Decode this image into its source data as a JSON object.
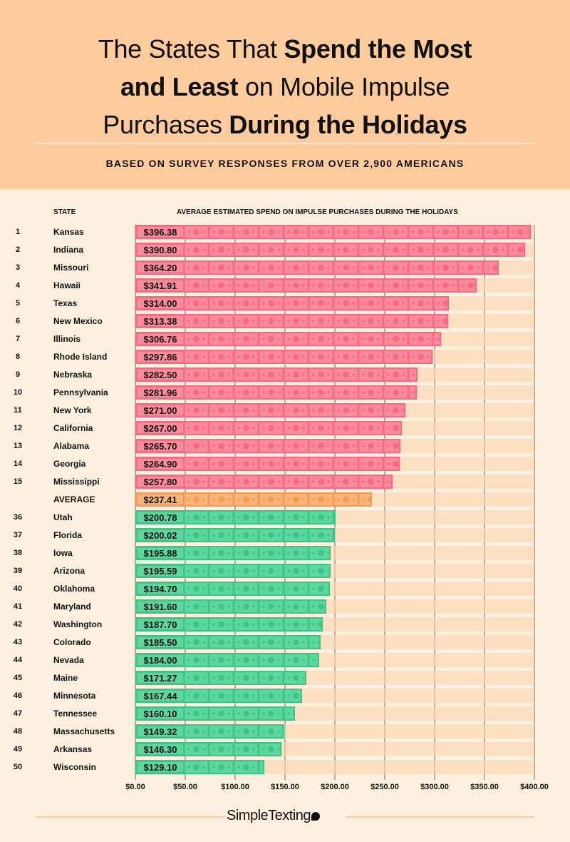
{
  "header": {
    "title_parts": [
      [
        "The States That ",
        false
      ],
      [
        "Spend the Most",
        true
      ],
      [
        "and Least",
        true
      ],
      [
        " on Mobile Impulse",
        false
      ],
      [
        "Purchases ",
        false
      ],
      [
        "During the Holidays",
        true
      ]
    ],
    "subtitle": "BASED ON SURVEY RESPONSES FROM OVER 2,900 AMERICANS"
  },
  "colors": {
    "top": "#fb8a9c",
    "average": "#f9b477",
    "bottom": "#5ed6a0",
    "track": "#fde0c4",
    "header_bg": "#fdcb9c",
    "page_bg": "#fdf0e1"
  },
  "chart_data": {
    "type": "bar",
    "orientation": "horizontal",
    "row_header": "STATE",
    "title": "AVERAGE ESTIMATED SPEND ON IMPULSE PURCHASES DURING THE HOLIDAYS",
    "xlim": [
      0,
      400
    ],
    "grid": true,
    "ticks": [
      "$0.00",
      "$50.00",
      "$100.00",
      "$150.00",
      "$200.00",
      "$250.00",
      "$300.00",
      "$350.00",
      "$400.00"
    ],
    "rows": [
      {
        "rank": "1",
        "state": "Kansas",
        "value": 396.38,
        "label": "$396.38",
        "group": "top"
      },
      {
        "rank": "2",
        "state": "Indiana",
        "value": 390.8,
        "label": "$390.80",
        "group": "top"
      },
      {
        "rank": "3",
        "state": "Missouri",
        "value": 364.2,
        "label": "$364.20",
        "group": "top"
      },
      {
        "rank": "4",
        "state": "Hawaii",
        "value": 341.91,
        "label": "$341.91",
        "group": "top"
      },
      {
        "rank": "5",
        "state": "Texas",
        "value": 314.0,
        "label": "$314.00",
        "group": "top"
      },
      {
        "rank": "6",
        "state": "New Mexico",
        "value": 313.38,
        "label": "$313.38",
        "group": "top"
      },
      {
        "rank": "7",
        "state": "Illinois",
        "value": 306.76,
        "label": "$306.76",
        "group": "top"
      },
      {
        "rank": "8",
        "state": "Rhode Island",
        "value": 297.86,
        "label": "$297.86",
        "group": "top"
      },
      {
        "rank": "9",
        "state": "Nebraska",
        "value": 282.5,
        "label": "$282.50",
        "group": "top"
      },
      {
        "rank": "10",
        "state": "Pennsylvania",
        "value": 281.96,
        "label": "$281.96",
        "group": "top"
      },
      {
        "rank": "11",
        "state": "New York",
        "value": 271.0,
        "label": "$271.00",
        "group": "top"
      },
      {
        "rank": "12",
        "state": "California",
        "value": 267.0,
        "label": "$267.00",
        "group": "top"
      },
      {
        "rank": "13",
        "state": "Alabama",
        "value": 265.7,
        "label": "$265.70",
        "group": "top"
      },
      {
        "rank": "14",
        "state": "Georgia",
        "value": 264.9,
        "label": "$264.90",
        "group": "top"
      },
      {
        "rank": "15",
        "state": "Mississippi",
        "value": 257.8,
        "label": "$257.80",
        "group": "top"
      },
      {
        "rank": "",
        "state": "AVERAGE",
        "value": 237.41,
        "label": "$237.41",
        "group": "average"
      },
      {
        "rank": "36",
        "state": "Utah",
        "value": 200.78,
        "label": "$200.78",
        "group": "bottom"
      },
      {
        "rank": "37",
        "state": "Florida",
        "value": 200.02,
        "label": "$200.02",
        "group": "bottom"
      },
      {
        "rank": "38",
        "state": "Iowa",
        "value": 195.88,
        "label": "$195.88",
        "group": "bottom"
      },
      {
        "rank": "39",
        "state": "Arizona",
        "value": 195.59,
        "label": "$195.59",
        "group": "bottom"
      },
      {
        "rank": "40",
        "state": "Oklahoma",
        "value": 194.7,
        "label": "$194.70",
        "group": "bottom"
      },
      {
        "rank": "41",
        "state": "Maryland",
        "value": 191.6,
        "label": "$191.60",
        "group": "bottom"
      },
      {
        "rank": "42",
        "state": "Washington",
        "value": 187.7,
        "label": "$187.70",
        "group": "bottom"
      },
      {
        "rank": "43",
        "state": "Colorado",
        "value": 185.5,
        "label": "$185.50",
        "group": "bottom"
      },
      {
        "rank": "44",
        "state": "Nevada",
        "value": 184.0,
        "label": "$184.00",
        "group": "bottom"
      },
      {
        "rank": "45",
        "state": "Maine",
        "value": 171.27,
        "label": "$171.27",
        "group": "bottom"
      },
      {
        "rank": "46",
        "state": "Minnesota",
        "value": 167.44,
        "label": "$167.44",
        "group": "bottom"
      },
      {
        "rank": "47",
        "state": "Tennessee",
        "value": 160.1,
        "label": "$160.10",
        "group": "bottom"
      },
      {
        "rank": "48",
        "state": "Massachusetts",
        "value": 149.32,
        "label": "$149.32",
        "group": "bottom"
      },
      {
        "rank": "49",
        "state": "Arkansas",
        "value": 146.3,
        "label": "$146.30",
        "group": "bottom"
      },
      {
        "rank": "50",
        "state": "Wisconsin",
        "value": 129.1,
        "label": "$129.10",
        "group": "bottom"
      }
    ]
  },
  "footer": {
    "logo": "SimpleTexting"
  }
}
